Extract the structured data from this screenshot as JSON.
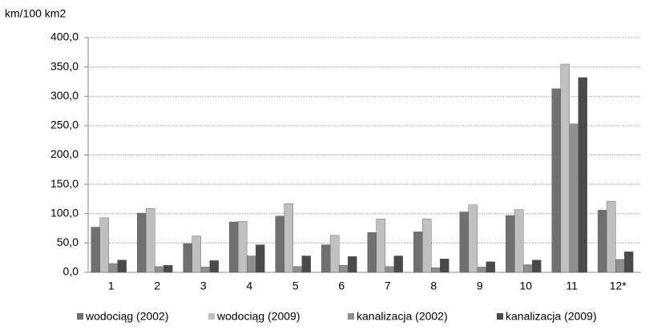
{
  "chart_data": {
    "type": "bar",
    "y_axis_label": "km/100 km2",
    "categories": [
      "1",
      "2",
      "3",
      "4",
      "5",
      "6",
      "7",
      "8",
      "9",
      "10",
      "11",
      "12*"
    ],
    "series": [
      {
        "name": "wodociąg (2002)",
        "color": "#707070",
        "values": [
          77,
          101,
          49,
          86,
          96,
          47,
          68,
          69,
          103,
          97,
          313,
          106
        ]
      },
      {
        "name": "wodociąg (2009)",
        "color": "#c0c0c0",
        "values": [
          93,
          109,
          62,
          87,
          117,
          63,
          91,
          91,
          115,
          107,
          355,
          121
        ]
      },
      {
        "name": "kanalizacja (2002)",
        "color": "#8e8e8e",
        "values": [
          15,
          10,
          9,
          28,
          10,
          12,
          10,
          8,
          9,
          13,
          253,
          22
        ]
      },
      {
        "name": "kanalizacja (2009)",
        "color": "#4a4a4a",
        "values": [
          21,
          12,
          20,
          47,
          28,
          27,
          28,
          23,
          18,
          21,
          332,
          35
        ]
      }
    ],
    "ylim": [
      0,
      400
    ],
    "yticks": [
      {
        "value": 0,
        "label": "0,0"
      },
      {
        "value": 50,
        "label": "50,0"
      },
      {
        "value": 100,
        "label": "100,0"
      },
      {
        "value": 150,
        "label": "150,0"
      },
      {
        "value": 200,
        "label": "200,0"
      },
      {
        "value": 250,
        "label": "250,0"
      },
      {
        "value": 300,
        "label": "300,0"
      },
      {
        "value": 350,
        "label": "350,0"
      },
      {
        "value": 400,
        "label": "400,0"
      }
    ],
    "grid": true,
    "legend": "bottom"
  }
}
